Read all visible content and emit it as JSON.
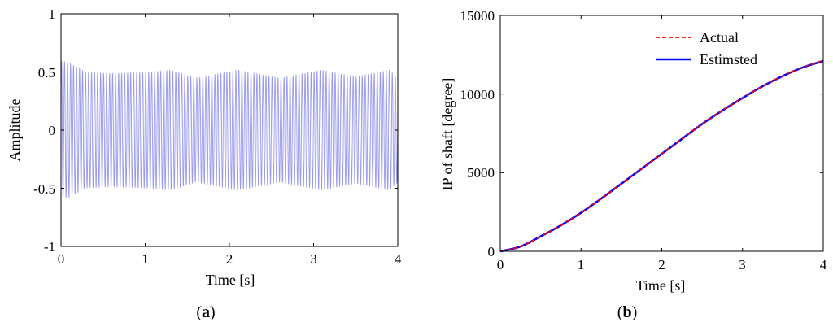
{
  "chart_data": [
    {
      "type": "line",
      "title": "",
      "xlabel": "Time [s]",
      "ylabel": "Amplitude",
      "xlim": [
        0,
        4
      ],
      "ylim": [
        -1,
        1
      ],
      "xticks": [
        "0",
        "1",
        "2",
        "3",
        "4"
      ],
      "yticks": [
        "-1",
        "-0.5",
        "0",
        "0.5",
        "1"
      ],
      "grid": false,
      "caption_open": "(",
      "caption_letter": "a",
      "caption_close": ")",
      "series": [
        {
          "color": "#9999ee",
          "signal": "oscillation, about 28 cycles per second, amplitude about 0.5 (about 0.6 at start, 0.45 near t=1.6 and t=2.6, 0.52 near t=1.3, 2.1, 3.1)",
          "x": [
            0,
            0.1,
            0.3,
            0.6,
            1.0,
            1.3,
            1.6,
            2.1,
            2.6,
            3.1,
            3.5,
            3.9,
            4.0
          ],
          "envelope": [
            0.6,
            0.58,
            0.5,
            0.49,
            0.5,
            0.52,
            0.45,
            0.52,
            0.45,
            0.52,
            0.46,
            0.52,
            0.45
          ]
        }
      ]
    },
    {
      "type": "line",
      "title": "",
      "xlabel": "Time [s]",
      "ylabel": "IP of shaft [degree]",
      "xlim": [
        0,
        4
      ],
      "ylim": [
        0,
        15000
      ],
      "xticks": [
        "0",
        "1",
        "2",
        "3",
        "4"
      ],
      "yticks": [
        "0",
        "5000",
        "10000",
        "15000"
      ],
      "grid": false,
      "legend_position": "top-right",
      "caption_open": "(",
      "caption_letter": "b",
      "caption_close": ")",
      "series": [
        {
          "name": "Actual",
          "color": "#ff0000",
          "style": "dashed",
          "x": [
            0,
            0.25,
            0.5,
            0.75,
            1.0,
            1.25,
            1.5,
            1.75,
            2.0,
            2.25,
            2.5,
            2.75,
            3.0,
            3.25,
            3.5,
            3.75,
            4.0
          ],
          "y": [
            0,
            300,
            950,
            1650,
            2450,
            3350,
            4300,
            5250,
            6200,
            7150,
            8100,
            8950,
            9750,
            10500,
            11150,
            11700,
            12150
          ]
        },
        {
          "name": "Estimsted",
          "color": "#0000ff",
          "style": "solid",
          "x": [
            0,
            0.25,
            0.5,
            0.75,
            1.0,
            1.25,
            1.5,
            1.75,
            2.0,
            2.25,
            2.5,
            2.75,
            3.0,
            3.25,
            3.5,
            3.75,
            4.0
          ],
          "y": [
            0,
            300,
            950,
            1650,
            2450,
            3350,
            4300,
            5250,
            6200,
            7150,
            8100,
            8950,
            9750,
            10500,
            11150,
            11700,
            12100
          ]
        }
      ]
    }
  ]
}
